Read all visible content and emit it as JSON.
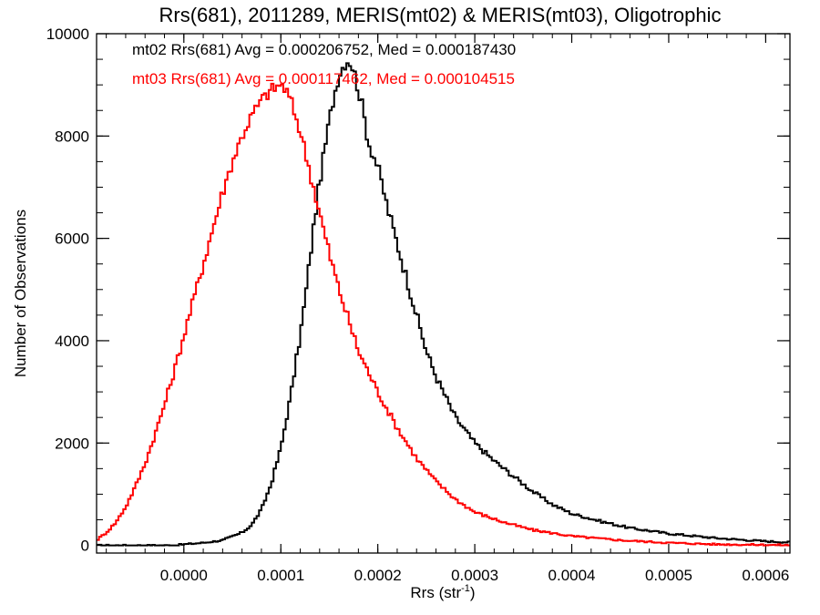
{
  "chart_data": {
    "type": "histogram",
    "title": "Rrs(681), 2011289, MERIS(mt02) & MERIS(mt03), Oligotrophic",
    "xlabel": "Rrs (str",
    "xlabel_sup": "-1",
    "xlabel_end": ")",
    "ylabel": "Number of Observations",
    "xlim": [
      -9e-05,
      0.000625
    ],
    "ylim": [
      -150,
      10000
    ],
    "xticks": [
      0.0,
      0.0001,
      0.0002,
      0.0003,
      0.0004,
      0.0005,
      0.0006
    ],
    "xtick_labels": [
      "0.0000",
      "0.0001",
      "0.0002",
      "0.0003",
      "0.0004",
      "0.0005",
      "0.0006"
    ],
    "yticks": [
      0,
      2000,
      4000,
      6000,
      8000,
      10000
    ],
    "ytick_labels": [
      "0",
      "2000",
      "4000",
      "6000",
      "8000",
      "10000"
    ],
    "grid": false,
    "legend_position": "top-left",
    "series": [
      {
        "name": "mt02",
        "legend": "mt02 Rrs(681) Avg = 0.000206752, Med = 0.000187430",
        "color": "#000000",
        "x": [
          -9e-05,
          -7e-05,
          -5e-05,
          -3e-05,
          -1e-05,
          0.0,
          2e-05,
          4e-05,
          6e-05,
          7e-05,
          8e-05,
          9e-05,
          0.0001,
          0.00011,
          0.00012,
          0.000125,
          0.00013,
          0.000135,
          0.00014,
          0.000145,
          0.00015,
          0.000155,
          0.00016,
          0.000165,
          0.00017,
          0.000175,
          0.00018,
          0.000185,
          0.00019,
          0.0002,
          0.00021,
          0.00022,
          0.00023,
          0.00024,
          0.00025,
          0.00026,
          0.00027,
          0.00028,
          0.0003,
          0.00032,
          0.00034,
          0.00036,
          0.00038,
          0.0004,
          0.00043,
          0.00046,
          0.0005,
          0.00055,
          0.0006,
          0.000625
        ],
        "values": [
          0,
          0,
          0,
          0,
          0,
          20,
          50,
          100,
          250,
          400,
          700,
          1200,
          1900,
          2900,
          4100,
          4800,
          5600,
          6400,
          7100,
          7700,
          8300,
          8800,
          9200,
          9400,
          9500,
          9300,
          8900,
          8500,
          7900,
          7400,
          6600,
          5900,
          5200,
          4500,
          3800,
          3300,
          2900,
          2500,
          2000,
          1650,
          1350,
          1050,
          800,
          620,
          470,
          340,
          230,
          140,
          80,
          60
        ]
      },
      {
        "name": "mt03",
        "legend": "mt03 Rrs(681) Avg = 0.000117462, Med = 0.000104515",
        "color": "#ff0000",
        "x": [
          -9e-05,
          -8e-05,
          -7e-05,
          -6e-05,
          -5e-05,
          -4e-05,
          -3e-05,
          -2e-05,
          -1e-05,
          0.0,
          1e-05,
          2e-05,
          3e-05,
          4e-05,
          5e-05,
          6e-05,
          7e-05,
          8e-05,
          9e-05,
          0.0001,
          0.000105,
          0.00011,
          0.00012,
          0.00013,
          0.00014,
          0.00015,
          0.00016,
          0.00017,
          0.00018,
          0.0002,
          0.00022,
          0.00024,
          0.00026,
          0.00028,
          0.0003,
          0.00033,
          0.00036,
          0.0004,
          0.00045,
          0.0005,
          0.00055,
          0.0006,
          0.000625
        ],
        "values": [
          100,
          250,
          450,
          750,
          1150,
          1600,
          2150,
          2750,
          3400,
          4100,
          4800,
          5500,
          6200,
          6900,
          7500,
          8000,
          8400,
          8700,
          8900,
          9000,
          8900,
          8700,
          8100,
          7300,
          6500,
          5700,
          5000,
          4400,
          3800,
          3000,
          2300,
          1700,
          1250,
          900,
          650,
          450,
          300,
          180,
          100,
          50,
          20,
          10,
          5
        ]
      }
    ]
  }
}
